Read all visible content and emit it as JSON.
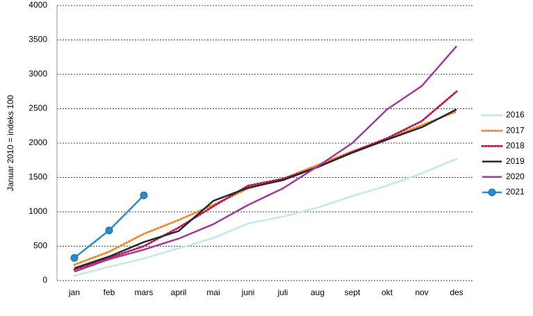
{
  "chart_data": {
    "type": "line",
    "ylabel": "Januar 2010 = indeks 100",
    "categories": [
      "jan",
      "feb",
      "mars",
      "april",
      "mai",
      "juni",
      "juli",
      "aug",
      "sept",
      "okt",
      "nov",
      "des"
    ],
    "series": [
      {
        "name": "2016",
        "color": "#c5e6ec",
        "style": "dotted",
        "values": [
          70,
          200,
          320,
          470,
          620,
          830,
          930,
          1060,
          1230,
          1380,
          1560,
          1770
        ]
      },
      {
        "name": "2017",
        "color": "#f08a24",
        "style": "dotted",
        "values": [
          230,
          420,
          680,
          880,
          1100,
          1340,
          1480,
          1680,
          1880,
          2060,
          2260,
          2460
        ]
      },
      {
        "name": "2018",
        "color": "#c0144d",
        "style": "dotted",
        "values": [
          160,
          330,
          500,
          770,
          1080,
          1380,
          1480,
          1650,
          1870,
          2070,
          2320,
          2750
        ]
      },
      {
        "name": "2019",
        "color": "#1f2a36",
        "style": "solid",
        "values": [
          180,
          350,
          560,
          720,
          1160,
          1350,
          1460,
          1650,
          1860,
          2050,
          2230,
          2490
        ]
      },
      {
        "name": "2020",
        "color": "#9b3c9e",
        "style": "solid",
        "values": [
          130,
          310,
          450,
          610,
          820,
          1100,
          1340,
          1660,
          2000,
          2490,
          2830,
          3410
        ]
      },
      {
        "name": "2021",
        "color": "#2a8bc8",
        "style": "solid",
        "marker": true,
        "values": [
          330,
          730,
          1240,
          null,
          null,
          null,
          null,
          null,
          null,
          null,
          null,
          null
        ]
      }
    ],
    "ylim": [
      0,
      4000
    ],
    "yticks": [
      0,
      500,
      1000,
      1500,
      2000,
      2500,
      3000,
      3500,
      4000
    ],
    "grid": true,
    "legend": "right"
  }
}
